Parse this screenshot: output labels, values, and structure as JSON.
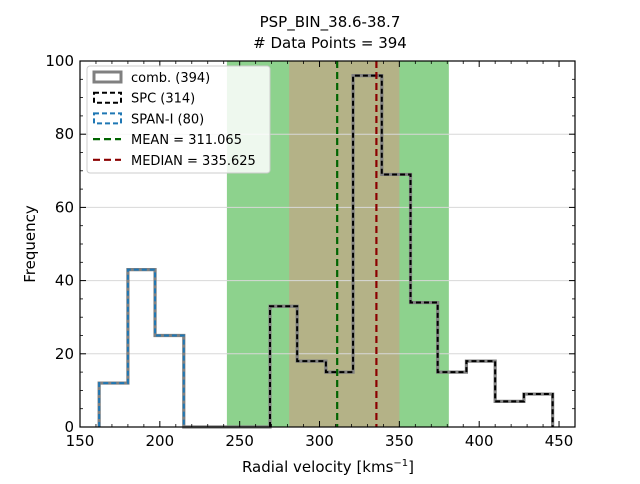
{
  "chart_data": {
    "type": "histogram",
    "title": "PSP_BIN_38.6-38.7",
    "subtitle": "# Data Points = 394",
    "xlabel_main": "Radial velocity [kms",
    "xlabel_sup": "−1",
    "xlabel_end": "]",
    "ylabel": "Frequency",
    "xlim": [
      150,
      460
    ],
    "ylim": [
      0,
      100
    ],
    "xticks": [
      150,
      200,
      250,
      300,
      350,
      400,
      450
    ],
    "yticks": [
      0,
      20,
      40,
      60,
      80,
      100
    ],
    "grid": "horizontal",
    "legend_position": "top-left",
    "bands": [
      {
        "name": "green-band",
        "range": [
          242,
          381
        ],
        "color": "#5cbf5c"
      },
      {
        "name": "brown-band",
        "range": [
          281,
          350
        ],
        "color": "#c4a484"
      }
    ],
    "series": [
      {
        "name": "comb. (394)",
        "style": "solid",
        "color": "#808080",
        "edges": [
          162,
          180,
          197,
          215,
          233,
          251,
          269,
          286,
          304,
          321,
          339,
          357,
          374,
          392,
          410,
          428,
          446
        ],
        "counts": [
          12,
          43,
          25,
          0,
          0,
          0,
          33,
          18,
          15,
          96,
          69,
          34,
          15,
          18,
          7,
          9
        ]
      },
      {
        "name": "SPC (314)",
        "style": "dashed",
        "color": "#000000",
        "edges": [
          269,
          286,
          304,
          321,
          339,
          357,
          374,
          392,
          410,
          428,
          446
        ],
        "counts": [
          33,
          18,
          15,
          96,
          69,
          34,
          15,
          18,
          7,
          9
        ]
      },
      {
        "name": "SPAN-I (80)",
        "style": "dashed",
        "color": "#1f77b4",
        "edges": [
          162,
          180,
          197,
          215
        ],
        "counts": [
          12,
          43,
          25
        ]
      }
    ],
    "lines": [
      {
        "name": "MEAN = 311.065",
        "x": 311.065,
        "color": "#006400"
      },
      {
        "name": "MEDIAN = 335.625",
        "x": 335.625,
        "color": "#8b0000"
      }
    ]
  }
}
